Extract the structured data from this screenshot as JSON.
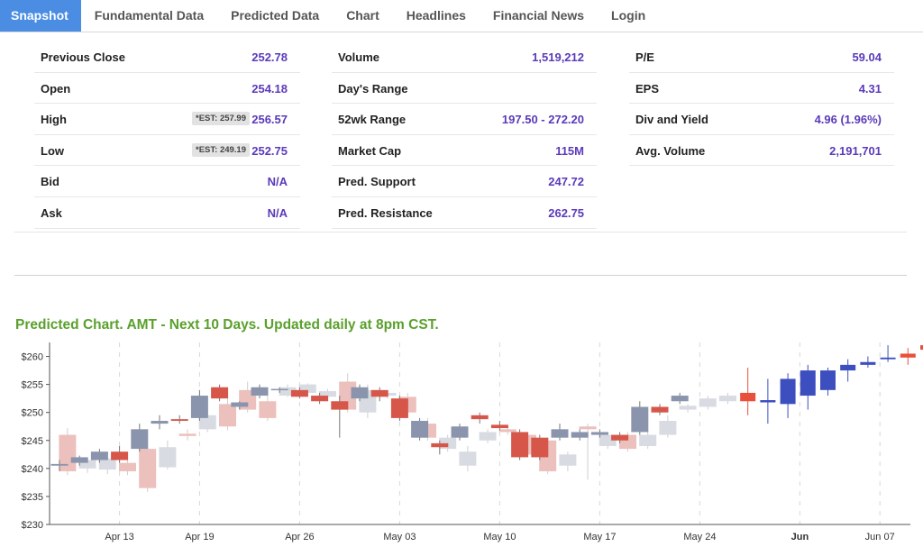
{
  "tabs": [
    {
      "label": "Snapshot",
      "active": true
    },
    {
      "label": "Fundamental Data"
    },
    {
      "label": "Predicted Data"
    },
    {
      "label": "Chart"
    },
    {
      "label": "Headlines"
    },
    {
      "label": "Financial News"
    },
    {
      "label": "Login"
    }
  ],
  "stats": {
    "col1": [
      {
        "label": "Previous Close",
        "value": "252.78"
      },
      {
        "label": "Open",
        "value": "254.18"
      },
      {
        "label": "High",
        "value": "256.57",
        "est": "*EST: 257.99"
      },
      {
        "label": "Low",
        "value": "252.75",
        "est": "*EST: 249.19"
      },
      {
        "label": "Bid",
        "value": "N/A"
      },
      {
        "label": "Ask",
        "value": "N/A"
      }
    ],
    "col2": [
      {
        "label": "Volume",
        "value": "1,519,212"
      },
      {
        "label": "Day's Range",
        "value": ""
      },
      {
        "label": "52wk Range",
        "value": "197.50 - 272.20"
      },
      {
        "label": "Market Cap",
        "value": "115M"
      },
      {
        "label": "Pred. Support",
        "value": "247.72"
      },
      {
        "label": "Pred. Resistance",
        "value": "262.75"
      }
    ],
    "col3": [
      {
        "label": "P/E",
        "value": "59.04"
      },
      {
        "label": "EPS",
        "value": "4.31"
      },
      {
        "label": "Div and Yield",
        "value": "4.96 (1.96%)"
      },
      {
        "label": "Avg. Volume",
        "value": "2,191,701"
      }
    ]
  },
  "chart_title": "Predicted Chart. AMT - Next 10 Days. Updated daily at 8pm CST.",
  "chart_data": {
    "type": "candlestick",
    "ylim": [
      230,
      262.5
    ],
    "y_ticks": [
      230,
      235,
      240,
      245,
      250,
      255,
      260
    ],
    "y_tick_labels": [
      "$230",
      "$235",
      "$240",
      "$245",
      "$250",
      "$255",
      "$260"
    ],
    "x_ticks": [
      {
        "label": "Apr 13",
        "i": 3,
        "bold": false
      },
      {
        "label": "Apr 19",
        "i": 7,
        "bold": false
      },
      {
        "label": "Apr 26",
        "i": 12,
        "bold": false
      },
      {
        "label": "May 03",
        "i": 17,
        "bold": false
      },
      {
        "label": "May 10",
        "i": 22,
        "bold": false
      },
      {
        "label": "May 17",
        "i": 27,
        "bold": false
      },
      {
        "label": "May 24",
        "i": 32,
        "bold": false
      },
      {
        "label": "Jun",
        "i": 37,
        "bold": true
      },
      {
        "label": "Jun 07",
        "i": 41,
        "bold": false
      }
    ],
    "colors": {
      "actual_up": "#8a95ad",
      "actual_down": "#d6574a",
      "shadow_up": "#d8dbe2",
      "shadow_down": "#ecc0bc",
      "pred_up": "#3d4fbf",
      "pred_down": "#e8503c",
      "wick": "#888888"
    },
    "shadow_candles": [
      {
        "i": 0.4,
        "o": 239.5,
        "c": 246.0,
        "h": 247.2,
        "l": 238.8,
        "dir": "down"
      },
      {
        "i": 1.4,
        "o": 240.0,
        "c": 241.5,
        "h": 242.0,
        "l": 239.2,
        "dir": "up"
      },
      {
        "i": 2.4,
        "o": 239.8,
        "c": 241.8,
        "h": 243.0,
        "l": 239.0,
        "dir": "up"
      },
      {
        "i": 3.4,
        "o": 241.0,
        "c": 239.5,
        "h": 242.5,
        "l": 238.8,
        "dir": "down"
      },
      {
        "i": 4.4,
        "o": 243.5,
        "c": 236.5,
        "h": 244.0,
        "l": 235.8,
        "dir": "down"
      },
      {
        "i": 5.4,
        "o": 240.2,
        "c": 243.8,
        "h": 245.0,
        "l": 239.8,
        "dir": "up"
      },
      {
        "i": 6.4,
        "o": 245.8,
        "c": 246.2,
        "h": 247.0,
        "l": 245.0,
        "dir": "down"
      },
      {
        "i": 7.4,
        "o": 247.0,
        "c": 249.5,
        "h": 250.5,
        "l": 246.5,
        "dir": "up"
      },
      {
        "i": 8.4,
        "o": 251.5,
        "c": 247.5,
        "h": 252.5,
        "l": 246.8,
        "dir": "down"
      },
      {
        "i": 9.4,
        "o": 254.0,
        "c": 250.5,
        "h": 255.5,
        "l": 250.0,
        "dir": "down"
      },
      {
        "i": 10.4,
        "o": 252.0,
        "c": 249.0,
        "h": 253.0,
        "l": 248.5,
        "dir": "down"
      },
      {
        "i": 11.4,
        "o": 253.0,
        "c": 254.5,
        "h": 255.0,
        "l": 252.8,
        "dir": "up"
      },
      {
        "i": 12.4,
        "o": 253.5,
        "c": 255.0,
        "h": 255.2,
        "l": 253.0,
        "dir": "up"
      },
      {
        "i": 13.4,
        "o": 252.8,
        "c": 253.8,
        "h": 254.2,
        "l": 252.0,
        "dir": "up"
      },
      {
        "i": 14.4,
        "o": 255.5,
        "c": 250.5,
        "h": 257.0,
        "l": 250.0,
        "dir": "down"
      },
      {
        "i": 15.4,
        "o": 250.0,
        "c": 254.0,
        "h": 255.0,
        "l": 249.0,
        "dir": "up"
      },
      {
        "i": 16.4,
        "o": 253.0,
        "c": 253.5,
        "h": 254.0,
        "l": 252.5,
        "dir": "up"
      },
      {
        "i": 17.4,
        "o": 252.8,
        "c": 250.0,
        "h": 253.5,
        "l": 249.5,
        "dir": "down"
      },
      {
        "i": 18.4,
        "o": 248.0,
        "c": 245.5,
        "h": 249.0,
        "l": 245.0,
        "dir": "down"
      },
      {
        "i": 19.4,
        "o": 243.5,
        "c": 245.5,
        "h": 246.0,
        "l": 243.0,
        "dir": "up"
      },
      {
        "i": 20.4,
        "o": 240.5,
        "c": 243.0,
        "h": 244.0,
        "l": 239.5,
        "dir": "up"
      },
      {
        "i": 21.4,
        "o": 245.0,
        "c": 246.5,
        "h": 247.0,
        "l": 244.5,
        "dir": "up"
      },
      {
        "i": 22.4,
        "o": 246.5,
        "c": 247.0,
        "h": 247.5,
        "l": 246.0,
        "dir": "down"
      },
      {
        "i": 23.4,
        "o": 246.0,
        "c": 242.5,
        "h": 246.5,
        "l": 242.0,
        "dir": "down"
      },
      {
        "i": 24.4,
        "o": 245.0,
        "c": 239.5,
        "h": 245.5,
        "l": 239.0,
        "dir": "down"
      },
      {
        "i": 25.4,
        "o": 240.5,
        "c": 242.5,
        "h": 243.0,
        "l": 239.5,
        "dir": "up"
      },
      {
        "i": 26.4,
        "o": 247.5,
        "c": 247.0,
        "h": 248.0,
        "l": 238.0,
        "dir": "down"
      },
      {
        "i": 27.4,
        "o": 244.0,
        "c": 246.0,
        "h": 246.5,
        "l": 243.5,
        "dir": "up"
      },
      {
        "i": 28.4,
        "o": 246.0,
        "c": 243.5,
        "h": 246.5,
        "l": 243.0,
        "dir": "down"
      },
      {
        "i": 29.4,
        "o": 244.0,
        "c": 246.0,
        "h": 246.5,
        "l": 243.5,
        "dir": "up"
      },
      {
        "i": 30.4,
        "o": 246.0,
        "c": 248.5,
        "h": 249.5,
        "l": 245.5,
        "dir": "up"
      },
      {
        "i": 31.4,
        "o": 250.5,
        "c": 251.2,
        "h": 251.5,
        "l": 250.0,
        "dir": "up"
      },
      {
        "i": 32.4,
        "o": 251.0,
        "c": 252.5,
        "h": 253.0,
        "l": 250.5,
        "dir": "up"
      },
      {
        "i": 33.4,
        "o": 252.0,
        "c": 253.0,
        "h": 253.5,
        "l": 251.5,
        "dir": "up"
      }
    ],
    "actual_candles": [
      {
        "i": 0,
        "o": 240.5,
        "c": 240.8,
        "h": 241.5,
        "l": 239.5,
        "dir": "up"
      },
      {
        "i": 1,
        "o": 241.0,
        "c": 242.0,
        "h": 242.3,
        "l": 240.5,
        "dir": "up"
      },
      {
        "i": 2,
        "o": 241.5,
        "c": 243.0,
        "h": 243.5,
        "l": 241.0,
        "dir": "up"
      },
      {
        "i": 3,
        "o": 243.0,
        "c": 241.5,
        "h": 244.0,
        "l": 241.0,
        "dir": "down"
      },
      {
        "i": 4,
        "o": 243.5,
        "c": 247.0,
        "h": 248.0,
        "l": 243.0,
        "dir": "up"
      },
      {
        "i": 5,
        "o": 248.0,
        "c": 248.5,
        "h": 249.5,
        "l": 247.0,
        "dir": "up"
      },
      {
        "i": 6,
        "o": 248.8,
        "c": 248.5,
        "h": 249.5,
        "l": 248.0,
        "dir": "down"
      },
      {
        "i": 7,
        "o": 249.0,
        "c": 253.0,
        "h": 254.0,
        "l": 248.5,
        "dir": "up"
      },
      {
        "i": 8,
        "o": 254.5,
        "c": 252.5,
        "h": 255.0,
        "l": 252.0,
        "dir": "down"
      },
      {
        "i": 9,
        "o": 251.0,
        "c": 251.8,
        "h": 252.0,
        "l": 250.5,
        "dir": "up"
      },
      {
        "i": 10,
        "o": 253.0,
        "c": 254.5,
        "h": 255.0,
        "l": 252.5,
        "dir": "up"
      },
      {
        "i": 11,
        "o": 254.0,
        "c": 254.2,
        "h": 254.5,
        "l": 253.5,
        "dir": "up"
      },
      {
        "i": 12,
        "o": 254.0,
        "c": 252.8,
        "h": 254.5,
        "l": 252.5,
        "dir": "down"
      },
      {
        "i": 13,
        "o": 253.0,
        "c": 252.0,
        "h": 253.5,
        "l": 251.5,
        "dir": "down"
      },
      {
        "i": 14,
        "o": 252.0,
        "c": 250.5,
        "h": 253.0,
        "l": 245.5,
        "dir": "down"
      },
      {
        "i": 15,
        "o": 252.5,
        "c": 254.5,
        "h": 255.0,
        "l": 252.0,
        "dir": "up"
      },
      {
        "i": 16,
        "o": 254.0,
        "c": 252.8,
        "h": 254.5,
        "l": 252.0,
        "dir": "down"
      },
      {
        "i": 17,
        "o": 252.5,
        "c": 249.0,
        "h": 253.0,
        "l": 248.5,
        "dir": "down"
      },
      {
        "i": 18,
        "o": 245.5,
        "c": 248.5,
        "h": 249.0,
        "l": 245.0,
        "dir": "up"
      },
      {
        "i": 19,
        "o": 244.5,
        "c": 243.8,
        "h": 245.0,
        "l": 242.5,
        "dir": "down"
      },
      {
        "i": 20,
        "o": 245.5,
        "c": 247.5,
        "h": 248.0,
        "l": 245.0,
        "dir": "up"
      },
      {
        "i": 21,
        "o": 249.5,
        "c": 248.8,
        "h": 250.0,
        "l": 248.0,
        "dir": "down"
      },
      {
        "i": 22,
        "o": 247.8,
        "c": 247.2,
        "h": 248.5,
        "l": 246.8,
        "dir": "down"
      },
      {
        "i": 23,
        "o": 246.5,
        "c": 242.0,
        "h": 247.0,
        "l": 241.5,
        "dir": "down"
      },
      {
        "i": 24,
        "o": 245.5,
        "c": 242.0,
        "h": 246.0,
        "l": 241.5,
        "dir": "down"
      },
      {
        "i": 25,
        "o": 245.5,
        "c": 247.0,
        "h": 248.0,
        "l": 245.0,
        "dir": "up"
      },
      {
        "i": 26,
        "o": 245.5,
        "c": 246.5,
        "h": 247.0,
        "l": 245.0,
        "dir": "up"
      },
      {
        "i": 27,
        "o": 246.0,
        "c": 246.5,
        "h": 247.0,
        "l": 245.5,
        "dir": "up"
      },
      {
        "i": 28,
        "o": 246.0,
        "c": 245.0,
        "h": 246.5,
        "l": 244.5,
        "dir": "down"
      },
      {
        "i": 29,
        "o": 246.5,
        "c": 251.0,
        "h": 252.0,
        "l": 246.0,
        "dir": "up"
      },
      {
        "i": 30,
        "o": 251.0,
        "c": 250.0,
        "h": 251.5,
        "l": 249.5,
        "dir": "down"
      },
      {
        "i": 31,
        "o": 252.0,
        "c": 253.0,
        "h": 253.5,
        "l": 251.5,
        "dir": "up"
      }
    ],
    "predicted_candles": [
      {
        "i": 34.4,
        "o": 253.5,
        "c": 252.0,
        "h": 258.0,
        "l": 249.5,
        "dir": "down"
      },
      {
        "i": 35.4,
        "o": 251.8,
        "c": 252.2,
        "h": 256.0,
        "l": 248.0,
        "dir": "up"
      },
      {
        "i": 36.4,
        "o": 251.5,
        "c": 256.0,
        "h": 257.0,
        "l": 249.0,
        "dir": "up"
      },
      {
        "i": 37.4,
        "o": 253.0,
        "c": 257.5,
        "h": 258.5,
        "l": 250.5,
        "dir": "up"
      },
      {
        "i": 38.4,
        "o": 254.0,
        "c": 257.5,
        "h": 258.0,
        "l": 253.0,
        "dir": "up"
      },
      {
        "i": 39.4,
        "o": 257.5,
        "c": 258.5,
        "h": 259.5,
        "l": 255.5,
        "dir": "up"
      },
      {
        "i": 40.4,
        "o": 258.5,
        "c": 259.0,
        "h": 260.0,
        "l": 258.0,
        "dir": "up"
      },
      {
        "i": 41.4,
        "o": 259.5,
        "c": 259.8,
        "h": 262.0,
        "l": 259.0,
        "dir": "up"
      },
      {
        "i": 42.4,
        "o": 260.5,
        "c": 259.8,
        "h": 261.5,
        "l": 258.5,
        "dir": "down"
      },
      {
        "i": 43.4,
        "o": 262.0,
        "c": 261.2,
        "h": 262.5,
        "l": 258.8,
        "dir": "down"
      }
    ]
  }
}
